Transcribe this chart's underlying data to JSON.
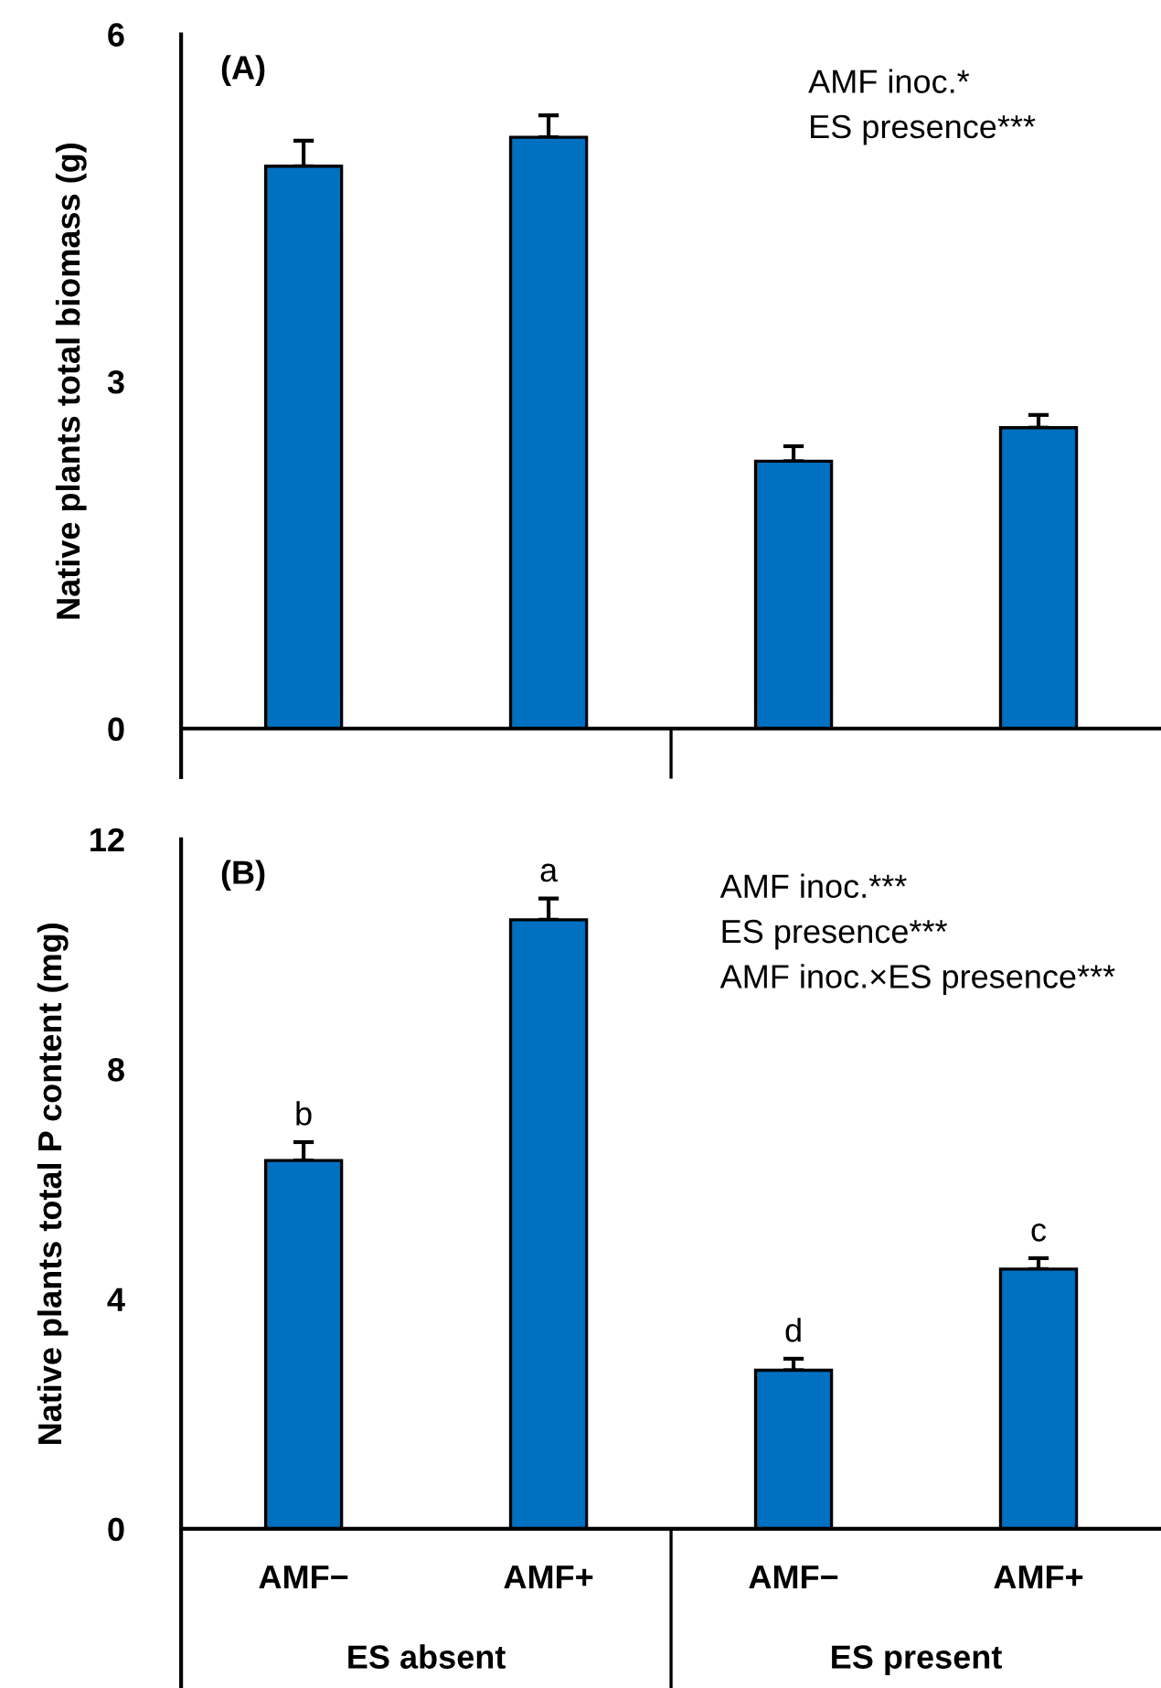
{
  "chart_data": [
    {
      "type": "bar",
      "ylabel": "Native plants total biomass (g)",
      "categories": [
        null,
        null,
        null,
        null
      ],
      "tick_labels": "y",
      "series": [
        {
          "color": "#0070c0",
          "values": [
            4.86,
            5.11,
            2.31,
            2.6
          ],
          "errors": [
            [
              4.86,
              5.08
            ],
            [
              5.11,
              5.3
            ],
            [
              2.31,
              2.44
            ],
            [
              2.6,
              2.71
            ]
          ]
        }
      ],
      "ylim": [
        0,
        6
      ],
      "yticks": [
        0,
        3,
        6
      ],
      "grid": false,
      "legend": false,
      "annotations": [
        "(A)",
        "AMF inoc.*\nES presence***"
      ]
    },
    {
      "type": "bar",
      "ylabel": "Native plants total P content (mg)",
      "categories": [
        "AMF−",
        "AMF+",
        "AMF−",
        "AMF+"
      ],
      "series": [
        {
          "color": "#0070c0",
          "values": [
            6.41,
            10.6,
            2.76,
            4.52
          ],
          "errors": [
            [
              6.41,
              6.73
            ],
            [
              10.6,
              10.97
            ],
            [
              2.76,
              2.96
            ],
            [
              4.52,
              4.71
            ]
          ],
          "value_labels": [
            "b",
            "a",
            "d",
            "c"
          ]
        }
      ],
      "ylim": [
        0,
        12
      ],
      "yticks": [
        0,
        4,
        8,
        12
      ],
      "grid": false,
      "legend": false,
      "annotations": [
        "(B)",
        "AMF inoc.***\nES presence***\nAMF inoc.×ES presence***",
        "ES absent",
        "ES present"
      ]
    }
  ]
}
